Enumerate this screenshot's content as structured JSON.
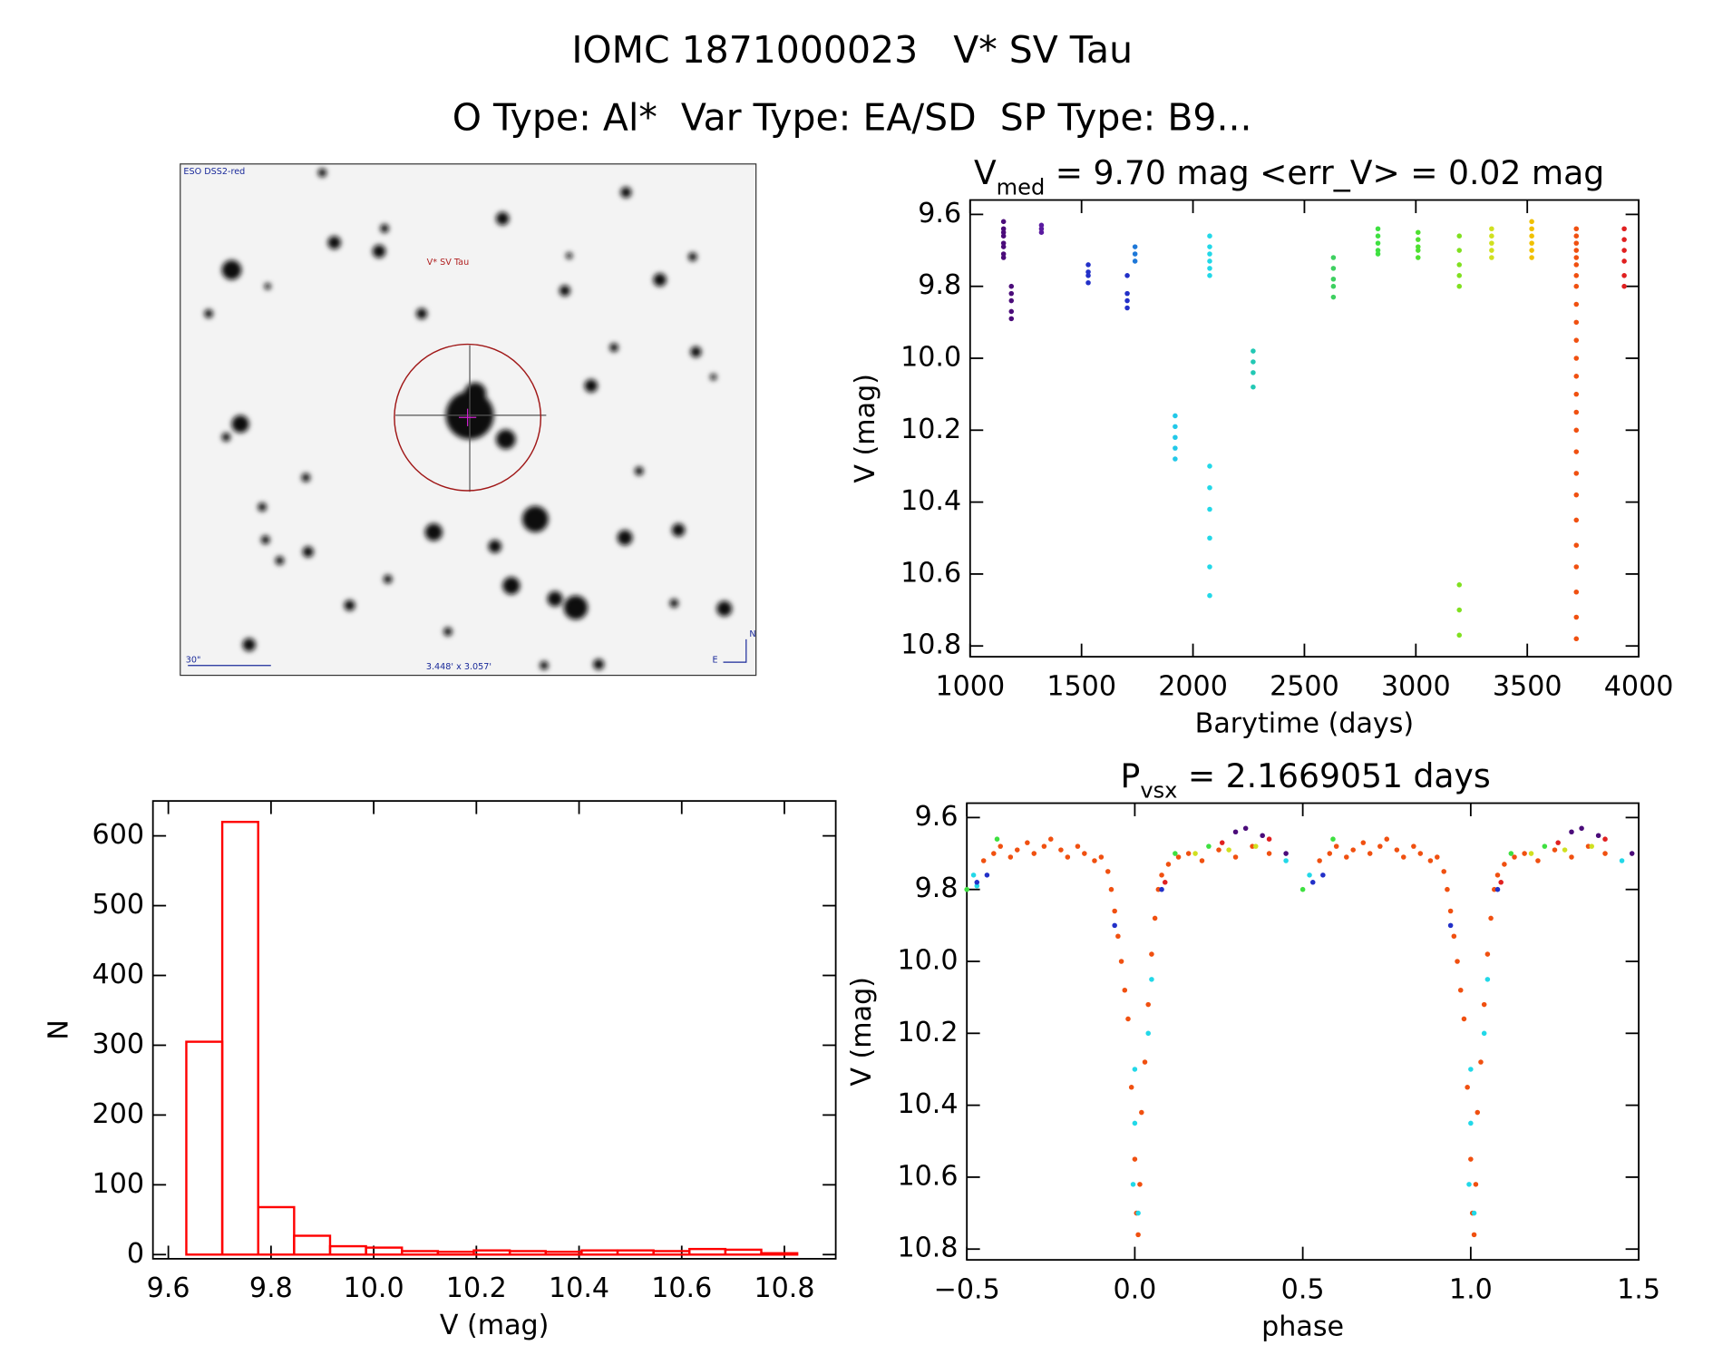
{
  "header": {
    "line1": "IOMC 1871000023   V* SV Tau",
    "line2": "O Type: Al*  Var Type: EA/SD  SP Type: B9..."
  },
  "image_panel": {
    "survey": "ESO DSS2-red",
    "target": "V* SV Tau",
    "scale": "30\"",
    "size": "3.448' x 3.057'",
    "north": "N",
    "east": "E"
  },
  "chart_data": [
    {
      "type": "scatter",
      "title": [
        "V",
        "med",
        " = 9.70 mag <err_V> = 0.02 mag"
      ],
      "xlabel": "Barytime (days)",
      "ylabel": "V (mag)",
      "xlim": [
        1000,
        4000
      ],
      "xticks": [
        1000,
        1500,
        2000,
        2500,
        3000,
        3500,
        4000
      ],
      "ylim": [
        10.83,
        9.56
      ],
      "yticks": [
        9.6,
        9.8,
        {
          "value": 10,
          "label": "10.0"
        },
        10.2,
        10.4,
        10.6,
        10.8
      ],
      "series": [
        {
          "color": "#4b0c7a",
          "x": [
            1150,
            1150,
            1150,
            1150,
            1150,
            1150,
            1150,
            1150
          ],
          "values": [
            9.62,
            9.64,
            9.65,
            9.66,
            9.68,
            9.69,
            9.71,
            9.72
          ]
        },
        {
          "color": "#4b0c7a",
          "x": [
            1185,
            1185,
            1185,
            1185,
            1185
          ],
          "values": [
            9.8,
            9.82,
            9.84,
            9.87,
            9.89
          ]
        },
        {
          "color": "#5a1aa0",
          "x": [
            1320,
            1320,
            1320
          ],
          "values": [
            9.63,
            9.64,
            9.65
          ]
        },
        {
          "color": "#2230c8",
          "x": [
            1530,
            1530,
            1530,
            1530
          ],
          "values": [
            9.74,
            9.76,
            9.77,
            9.79
          ]
        },
        {
          "color": "#2230c8",
          "x": [
            1705,
            1705,
            1705,
            1705
          ],
          "values": [
            9.77,
            9.82,
            9.84,
            9.86
          ]
        },
        {
          "color": "#1e78d8",
          "x": [
            1740,
            1740,
            1740
          ],
          "values": [
            9.69,
            9.71,
            9.73
          ]
        },
        {
          "color": "#22c8e8",
          "x": [
            1920,
            1920,
            1920,
            1920,
            1920
          ],
          "values": [
            10.16,
            10.19,
            10.22,
            10.25,
            10.28
          ]
        },
        {
          "color": "#22d8e8",
          "x": [
            2075,
            2075,
            2075,
            2075,
            2075,
            2075,
            2075,
            2075,
            2075,
            2075,
            2075,
            2075
          ],
          "values": [
            9.66,
            9.69,
            9.71,
            9.73,
            9.75,
            9.77,
            10.3,
            10.36,
            10.42,
            10.5,
            10.58,
            10.66
          ]
        },
        {
          "color": "#22c8b4",
          "x": [
            2270,
            2270,
            2270,
            2270
          ],
          "values": [
            9.98,
            10.01,
            10.04,
            10.08
          ]
        },
        {
          "color": "#3ed060",
          "x": [
            2630,
            2630,
            2630,
            2630,
            2630
          ],
          "values": [
            9.72,
            9.75,
            9.78,
            9.8,
            9.83
          ]
        },
        {
          "color": "#3ee040",
          "x": [
            2830,
            2830,
            2830,
            2830,
            2830
          ],
          "values": [
            9.64,
            9.66,
            9.68,
            9.7,
            9.71
          ]
        },
        {
          "color": "#4ee030",
          "x": [
            3010,
            3010,
            3010,
            3010,
            3010
          ],
          "values": [
            9.65,
            9.67,
            9.69,
            9.7,
            9.72
          ]
        },
        {
          "color": "#80e020",
          "x": [
            3195,
            3195,
            3195,
            3195,
            3195,
            3195,
            3195,
            3195
          ],
          "values": [
            9.66,
            9.7,
            9.74,
            9.77,
            9.8,
            10.63,
            10.7,
            10.77
          ]
        },
        {
          "color": "#d0e020",
          "x": [
            3340,
            3340,
            3340,
            3340,
            3340
          ],
          "values": [
            9.64,
            9.66,
            9.68,
            9.7,
            9.72
          ]
        },
        {
          "color": "#f0c000",
          "x": [
            3520,
            3520,
            3520,
            3520,
            3520,
            3520
          ],
          "values": [
            9.62,
            9.64,
            9.66,
            9.68,
            9.7,
            9.72
          ]
        },
        {
          "color": "#f05010",
          "x": [
            3720,
            3720,
            3720,
            3720,
            3720,
            3720,
            3720,
            3720,
            3720,
            3720,
            3720,
            3720,
            3720,
            3720,
            3720,
            3720,
            3720,
            3720,
            3720,
            3720,
            3720,
            3720,
            3720,
            3720,
            3720
          ],
          "values": [
            9.64,
            9.66,
            9.68,
            9.7,
            9.72,
            9.74,
            9.77,
            9.8,
            9.85,
            9.9,
            9.95,
            10.0,
            10.05,
            10.1,
            10.15,
            10.2,
            10.26,
            10.32,
            10.38,
            10.45,
            10.52,
            10.58,
            10.65,
            10.72,
            10.78
          ]
        },
        {
          "color": "#e02020",
          "x": [
            3935,
            3935,
            3935,
            3935,
            3935,
            3935
          ],
          "values": [
            9.64,
            9.67,
            9.7,
            9.73,
            9.77,
            9.8
          ]
        }
      ]
    },
    {
      "type": "histogram",
      "xlabel": "V (mag)",
      "ylabel": "N",
      "color": "#ff0000",
      "xlim": [
        9.57,
        10.9
      ],
      "xticks": [
        9.6,
        9.8,
        {
          "value": 10,
          "label": "10.0"
        },
        10.2,
        10.4,
        10.6,
        10.8
      ],
      "ylim": [
        -6,
        650
      ],
      "yticks": [
        0,
        100,
        200,
        300,
        400,
        500,
        600
      ],
      "bins": [
        9.635,
        9.705,
        9.775,
        9.845,
        9.915,
        9.985,
        10.055,
        10.125,
        10.195,
        10.265,
        10.335,
        10.405,
        10.475,
        10.545,
        10.615,
        10.685,
        10.755,
        10.825
      ],
      "values": [
        305,
        620,
        68,
        27,
        12,
        10,
        5,
        4,
        6,
        5,
        4,
        6,
        6,
        5,
        8,
        7,
        2
      ]
    },
    {
      "type": "scatter",
      "title": [
        "P",
        "vsx",
        " = 2.1669051 days"
      ],
      "xlabel": "phase",
      "ylabel": "V (mag)",
      "xlim": [
        -0.5,
        1.5
      ],
      "xticks": [
        {
          "value": -0.5,
          "label": "−0.5"
        },
        {
          "value": 0,
          "label": "0.0"
        },
        0.5,
        {
          "value": 1,
          "label": "1.0"
        },
        1.5
      ],
      "ylim": [
        10.83,
        9.56
      ],
      "yticks": [
        9.6,
        9.8,
        {
          "value": 10,
          "label": "10.0"
        },
        10.2,
        10.4,
        10.6,
        10.8
      ],
      "series": [
        {
          "color": "#f05010",
          "x": [
            -0.45,
            -0.42,
            -0.4,
            -0.37,
            -0.35,
            -0.32,
            -0.3,
            -0.27,
            -0.25,
            -0.22,
            -0.2,
            -0.17,
            -0.15,
            -0.12,
            -0.1,
            -0.08,
            -0.07,
            -0.06,
            -0.05,
            -0.04,
            -0.03,
            -0.02,
            -0.01,
            0.0,
            0.005,
            0.01,
            0.015,
            0.02,
            0.03,
            0.04,
            0.05,
            0.06,
            0.07,
            0.08,
            0.1,
            0.13,
            0.16,
            0.2,
            0.25,
            0.3,
            0.35,
            0.4,
            0.55,
            0.58,
            0.6,
            0.63,
            0.65,
            0.68,
            0.7,
            0.73,
            0.75,
            0.78,
            0.8,
            0.83,
            0.85,
            0.88,
            0.9,
            0.92,
            0.93,
            0.94,
            0.95,
            0.96,
            0.97,
            0.98,
            0.99,
            1.0,
            1.005,
            1.01,
            1.015,
            1.02,
            1.03,
            1.04,
            1.05,
            1.06,
            1.07,
            1.08,
            1.1,
            1.13,
            1.16,
            1.2,
            1.25,
            1.3,
            1.35,
            1.4
          ],
          "values": [
            9.72,
            9.7,
            9.68,
            9.71,
            9.69,
            9.67,
            9.7,
            9.68,
            9.66,
            9.69,
            9.71,
            9.68,
            9.7,
            9.72,
            9.71,
            9.75,
            9.8,
            9.86,
            9.93,
            10.0,
            10.08,
            10.16,
            10.35,
            10.55,
            10.7,
            10.76,
            10.62,
            10.42,
            10.28,
            10.12,
            9.98,
            9.88,
            9.8,
            9.76,
            9.73,
            9.71,
            9.7,
            9.72,
            9.69,
            9.71,
            9.68,
            9.7,
            9.72,
            9.7,
            9.68,
            9.71,
            9.69,
            9.67,
            9.7,
            9.68,
            9.66,
            9.69,
            9.71,
            9.68,
            9.7,
            9.72,
            9.71,
            9.75,
            9.8,
            9.86,
            9.93,
            10.0,
            10.08,
            10.16,
            10.35,
            10.55,
            10.7,
            10.76,
            10.62,
            10.42,
            10.28,
            10.12,
            9.98,
            9.88,
            9.8,
            9.76,
            9.73,
            9.71,
            9.7,
            9.72,
            9.69,
            9.71,
            9.68,
            9.7
          ]
        },
        {
          "color": "#22d8e8",
          "x": [
            -0.48,
            -0.47,
            0.0,
            0.0,
            -0.005,
            0.01,
            0.04,
            0.05,
            0.45,
            0.52,
            1.0,
            1.0,
            0.995,
            1.01,
            1.04,
            1.05,
            1.45
          ],
          "values": [
            9.76,
            9.79,
            10.3,
            10.45,
            10.62,
            10.7,
            10.2,
            10.05,
            9.72,
            9.76,
            10.3,
            10.45,
            10.62,
            10.7,
            10.2,
            10.05,
            9.72
          ]
        },
        {
          "color": "#4b0c7a",
          "x": [
            0.3,
            0.33,
            0.38,
            1.3,
            1.33,
            1.38,
            0.45,
            1.48
          ],
          "values": [
            9.64,
            9.63,
            9.65,
            9.64,
            9.63,
            9.65,
            9.7,
            9.7
          ]
        },
        {
          "color": "#2230c8",
          "x": [
            -0.47,
            -0.44,
            0.08,
            0.53,
            0.56,
            1.08,
            -0.06,
            0.94
          ],
          "values": [
            9.78,
            9.76,
            9.8,
            9.78,
            9.76,
            9.8,
            9.9,
            9.9
          ]
        },
        {
          "color": "#3ee040",
          "x": [
            -0.5,
            -0.41,
            0.12,
            0.22,
            0.5,
            0.59,
            1.12,
            1.22
          ],
          "values": [
            9.8,
            9.66,
            9.7,
            9.68,
            9.8,
            9.66,
            9.7,
            9.68
          ]
        },
        {
          "color": "#d0e020",
          "x": [
            0.18,
            0.28,
            0.36,
            1.18,
            1.28,
            1.36
          ],
          "values": [
            9.7,
            9.69,
            9.68,
            9.7,
            9.69,
            9.68
          ]
        },
        {
          "color": "#e02020",
          "x": [
            0.09,
            0.26,
            0.4,
            1.09,
            1.26,
            1.4
          ],
          "values": [
            9.78,
            9.67,
            9.66,
            9.78,
            9.67,
            9.66
          ]
        }
      ]
    }
  ]
}
